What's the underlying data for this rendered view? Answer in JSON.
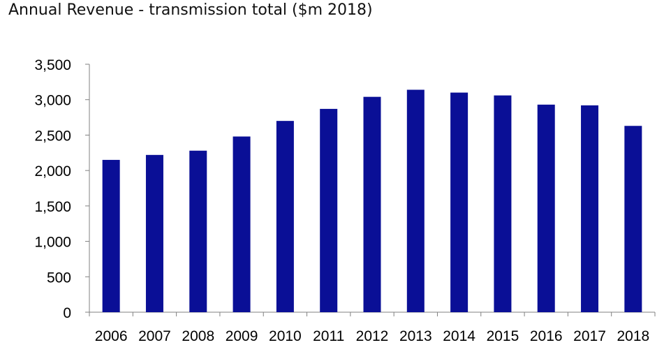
{
  "chart_data": {
    "type": "bar",
    "title": "Annual Revenue - transmission total ($m 2018)",
    "xlabel": "",
    "ylabel": "",
    "categories": [
      "2006",
      "2007",
      "2008",
      "2009",
      "2010",
      "2011",
      "2012",
      "2013",
      "2014",
      "2015",
      "2016",
      "2017",
      "2018"
    ],
    "values": [
      2150,
      2220,
      2280,
      2480,
      2700,
      2870,
      3040,
      3140,
      3100,
      3060,
      2930,
      2920,
      2630
    ],
    "ylim": [
      0,
      3500
    ],
    "yticks": [
      0,
      500,
      1000,
      1500,
      2000,
      2500,
      3000,
      3500
    ],
    "ytick_labels": [
      "0",
      "500",
      "1,000",
      "1,500",
      "2,000",
      "2,500",
      "3,000",
      "3,500"
    ],
    "grid": false,
    "legend": "none",
    "bar_color": "#0A0F96"
  }
}
